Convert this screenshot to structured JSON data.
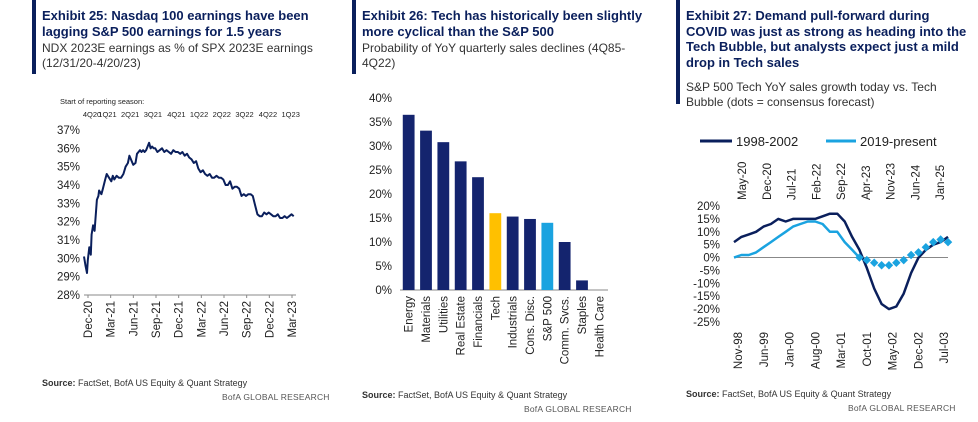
{
  "panels": [
    {
      "title": "Exhibit 25: Nasdaq  100 earnings have been lagging S&P 500 earnings for 1.5 years",
      "title_lines": [
        "Exhibit 25: Nasdaq  100 earnings have been",
        "lagging S&P 500 earnings for 1.5 years"
      ],
      "subtitle_lines": [
        "NDX 2023E earnings as % of SPX 2023E earnings",
        "(12/31/20-4/20/23)"
      ],
      "source_label": "Source:",
      "source_text": " FactSet, BofA US Equity & Quant Strategy",
      "brand": "BofA GLOBAL RESEARCH"
    },
    {
      "title": "Exhibit 26: Tech has historically been slightly more cyclical than the S&P 500",
      "title_lines": [
        "Exhibit 26: Tech has historically been slightly",
        "more cyclical than the S&P 500"
      ],
      "subtitle_lines": [
        "Probability of YoY quarterly sales declines (4Q85-",
        "4Q22)"
      ],
      "source_label": "Source:",
      "source_text": " FactSet, BofA US Equity & Quant Strategy",
      "brand": "BofA GLOBAL RESEARCH"
    },
    {
      "title": "Exhibit 27: Demand pull-forward during COVID was just as strong as heading into the Tech Bubble, but analysts expect just a mild drop in Tech sales",
      "title_lines": [
        "Exhibit 27: Demand pull-forward during",
        "COVID was just as strong as heading into the",
        "Tech Bubble, but analysts expect just a mild",
        "drop in Tech sales"
      ],
      "subtitle_lines": [
        "S&P 500 Tech YoY sales growth today vs. Tech",
        "Bubble (dots = consensus forecast)"
      ],
      "source_label": "Source:",
      "source_text": " FactSet, BofA US Equity & Quant Strategy",
      "brand": "BofA GLOBAL RESEARCH"
    }
  ],
  "colors": {
    "navy": "#0a1f5c",
    "title": "#0a1f5c",
    "bar_default": "#14246e",
    "bar_tech": "#ffc000",
    "bar_spx": "#1aa3e0",
    "light_blue": "#1aa3e0"
  },
  "chart_data": [
    {
      "type": "line",
      "title": "NDX 2023E earnings as % of SPX 2023E earnings",
      "annotation_label": "Start of reporting season:",
      "quarter_labels": [
        "4Q20",
        "1Q21",
        "2Q21",
        "3Q21",
        "4Q21",
        "1Q22",
        "2Q22",
        "3Q22",
        "4Q22",
        "1Q23"
      ],
      "quarter_x": [
        0,
        3.1,
        6.1,
        9.1,
        12.2,
        15.2,
        18.2,
        21.2,
        24.3,
        27.3
      ],
      "yticks": [
        "37%",
        "36%",
        "35%",
        "34%",
        "33%",
        "32%",
        "31%",
        "30%",
        "29%",
        "28%"
      ],
      "ylim": [
        28,
        37
      ],
      "xtick_labels": [
        "Dec-20",
        "Mar-21",
        "Jun-21",
        "Sep-21",
        "Dec-21",
        "Mar-22",
        "Jun-22",
        "Sep-22",
        "Dec-22",
        "Mar-23"
      ],
      "xlim": [
        0,
        28
      ],
      "series": [
        {
          "name": "NDX/SPX",
          "x": [
            0,
            0.2,
            0.4,
            0.5,
            0.7,
            0.9,
            1.0,
            1.2,
            1.4,
            1.5,
            1.7,
            1.9,
            2.0,
            2.3,
            2.5,
            2.8,
            3.0,
            3.3,
            3.6,
            3.8,
            4.0,
            4.3,
            4.6,
            4.9,
            5.2,
            5.5,
            5.8,
            6.0,
            6.2,
            6.5,
            6.8,
            7.0,
            7.2,
            7.4,
            7.6,
            7.8,
            8.0,
            8.2,
            8.4,
            8.6,
            8.8,
            9.0,
            9.2,
            9.4,
            9.7,
            10.0,
            10.3,
            10.6,
            10.9,
            11.2,
            11.5,
            11.8,
            12.1,
            12.4,
            12.7,
            13.0,
            13.3,
            13.6,
            13.9,
            14.2,
            14.5,
            14.8,
            15.1,
            15.4,
            15.7,
            16.0,
            16.3,
            16.6,
            16.9,
            17.2,
            17.5,
            17.8,
            18.1,
            18.4,
            18.7,
            19.0,
            19.3,
            19.6,
            19.9,
            20.2,
            20.5,
            20.8,
            21.1,
            21.4,
            21.7,
            22.0,
            22.3,
            22.6,
            22.9,
            23.2,
            23.5,
            23.8,
            24.1,
            24.4,
            24.7,
            25.0,
            25.3,
            25.6,
            25.9,
            26.2,
            26.5,
            26.8,
            27.1,
            27.4,
            27.7
          ],
          "values": [
            30.1,
            29.6,
            29.2,
            29.9,
            30.6,
            30.2,
            31.3,
            31.8,
            31.5,
            32.1,
            33.2,
            33.4,
            33.7,
            33.5,
            33.8,
            34.3,
            34.6,
            34.4,
            34.2,
            34.5,
            34.3,
            34.5,
            34.4,
            34.4,
            34.6,
            35.0,
            35.2,
            35.6,
            35.4,
            35.1,
            35.2,
            35.7,
            35.8,
            35.9,
            35.8,
            35.9,
            35.8,
            35.9,
            36.1,
            36.3,
            36.0,
            36.1,
            36.0,
            36.0,
            35.8,
            35.9,
            36.0,
            35.8,
            35.9,
            35.8,
            35.7,
            35.9,
            35.8,
            35.8,
            35.7,
            35.8,
            35.6,
            35.7,
            35.5,
            35.4,
            35.2,
            35.3,
            34.9,
            34.7,
            34.8,
            34.6,
            34.5,
            34.6,
            34.4,
            34.4,
            34.5,
            34.4,
            34.4,
            34.3,
            34.0,
            34.0,
            34.2,
            33.8,
            33.9,
            33.9,
            33.8,
            33.4,
            33.5,
            33.4,
            33.5,
            33.5,
            33.4,
            32.9,
            32.4,
            32.3,
            32.3,
            32.5,
            32.4,
            32.5,
            32.4,
            32.3,
            32.3,
            32.4,
            32.2,
            32.2,
            32.3,
            32.2,
            32.3,
            32.4,
            32.3
          ]
        }
      ]
    },
    {
      "type": "bar",
      "title": "Probability of YoY quarterly sales declines (4Q85-4Q22)",
      "categories": [
        "Energy",
        "Materials",
        "Utilities",
        "Real Estate",
        "Financials",
        "Tech",
        "Industrials",
        "Cons. Disc.",
        "S&P 500",
        "Comm. Svcs.",
        "Staples",
        "Health Care"
      ],
      "values": [
        36.5,
        33.2,
        30.8,
        26.8,
        23.5,
        16.0,
        15.3,
        14.8,
        14.0,
        10.0,
        2.0,
        0.0
      ],
      "highlight": {
        "Tech": "bar_tech",
        "S&P 500": "bar_spx"
      },
      "yticks": [
        "40%",
        "35%",
        "30%",
        "25%",
        "20%",
        "15%",
        "10%",
        "5%",
        "0%"
      ],
      "ylim": [
        0,
        40
      ]
    },
    {
      "type": "line",
      "title": "S&P 500 Tech YoY sales growth today vs. Tech Bubble (dots = consensus forecast)",
      "legend": [
        "1998-2002",
        "2019-present"
      ],
      "legend_position": "top",
      "top_tick_labels": [
        "May-20",
        "Dec-20",
        "Jul-21",
        "Feb-22",
        "Sep-22",
        "Apr-23",
        "Nov-23",
        "Jun-24",
        "Jan-25"
      ],
      "bottom_tick_labels": [
        "Nov-98",
        "Jun-99",
        "Jan-00",
        "Aug-00",
        "Mar-01",
        "Oct-01",
        "May-02",
        "Dec-02",
        "Jul-03"
      ],
      "yticks": [
        "20%",
        "15%",
        "10%",
        "5%",
        "0%",
        "-5%",
        "-10%",
        "-15%",
        "-20%",
        "-25%"
      ],
      "ylim": [
        -25,
        20
      ],
      "xlim": [
        0,
        58
      ],
      "series": [
        {
          "name": "1998-2002",
          "x": [
            0,
            2,
            4,
            6,
            8,
            10,
            12,
            14,
            16,
            18,
            20,
            22,
            24,
            26,
            28,
            30,
            32,
            34,
            36,
            38,
            40,
            42,
            44,
            46,
            48,
            50,
            52,
            54,
            56,
            58
          ],
          "values": [
            6,
            8,
            9,
            10,
            12,
            13,
            15,
            14,
            15,
            15,
            15,
            15,
            16,
            17,
            17,
            14,
            8,
            3,
            -4,
            -12,
            -18,
            -20,
            -19,
            -14,
            -6,
            0,
            3,
            5,
            6,
            8
          ]
        },
        {
          "name": "2019-present",
          "x": [
            0,
            2,
            4,
            6,
            8,
            10,
            12,
            14,
            16,
            18,
            20,
            22,
            24,
            26,
            28,
            30,
            32,
            34
          ],
          "values": [
            0,
            1,
            1,
            2,
            4,
            6,
            8,
            10,
            12,
            13,
            14,
            14,
            13,
            10,
            10,
            6,
            3,
            0
          ],
          "dots_x": [
            34,
            36,
            38,
            40,
            42,
            44,
            46,
            48,
            50,
            52,
            54,
            56,
            58
          ],
          "dots_values": [
            0,
            -1,
            -2,
            -3,
            -3,
            -2,
            -1,
            1,
            2,
            4,
            6,
            7,
            6
          ]
        }
      ]
    }
  ]
}
